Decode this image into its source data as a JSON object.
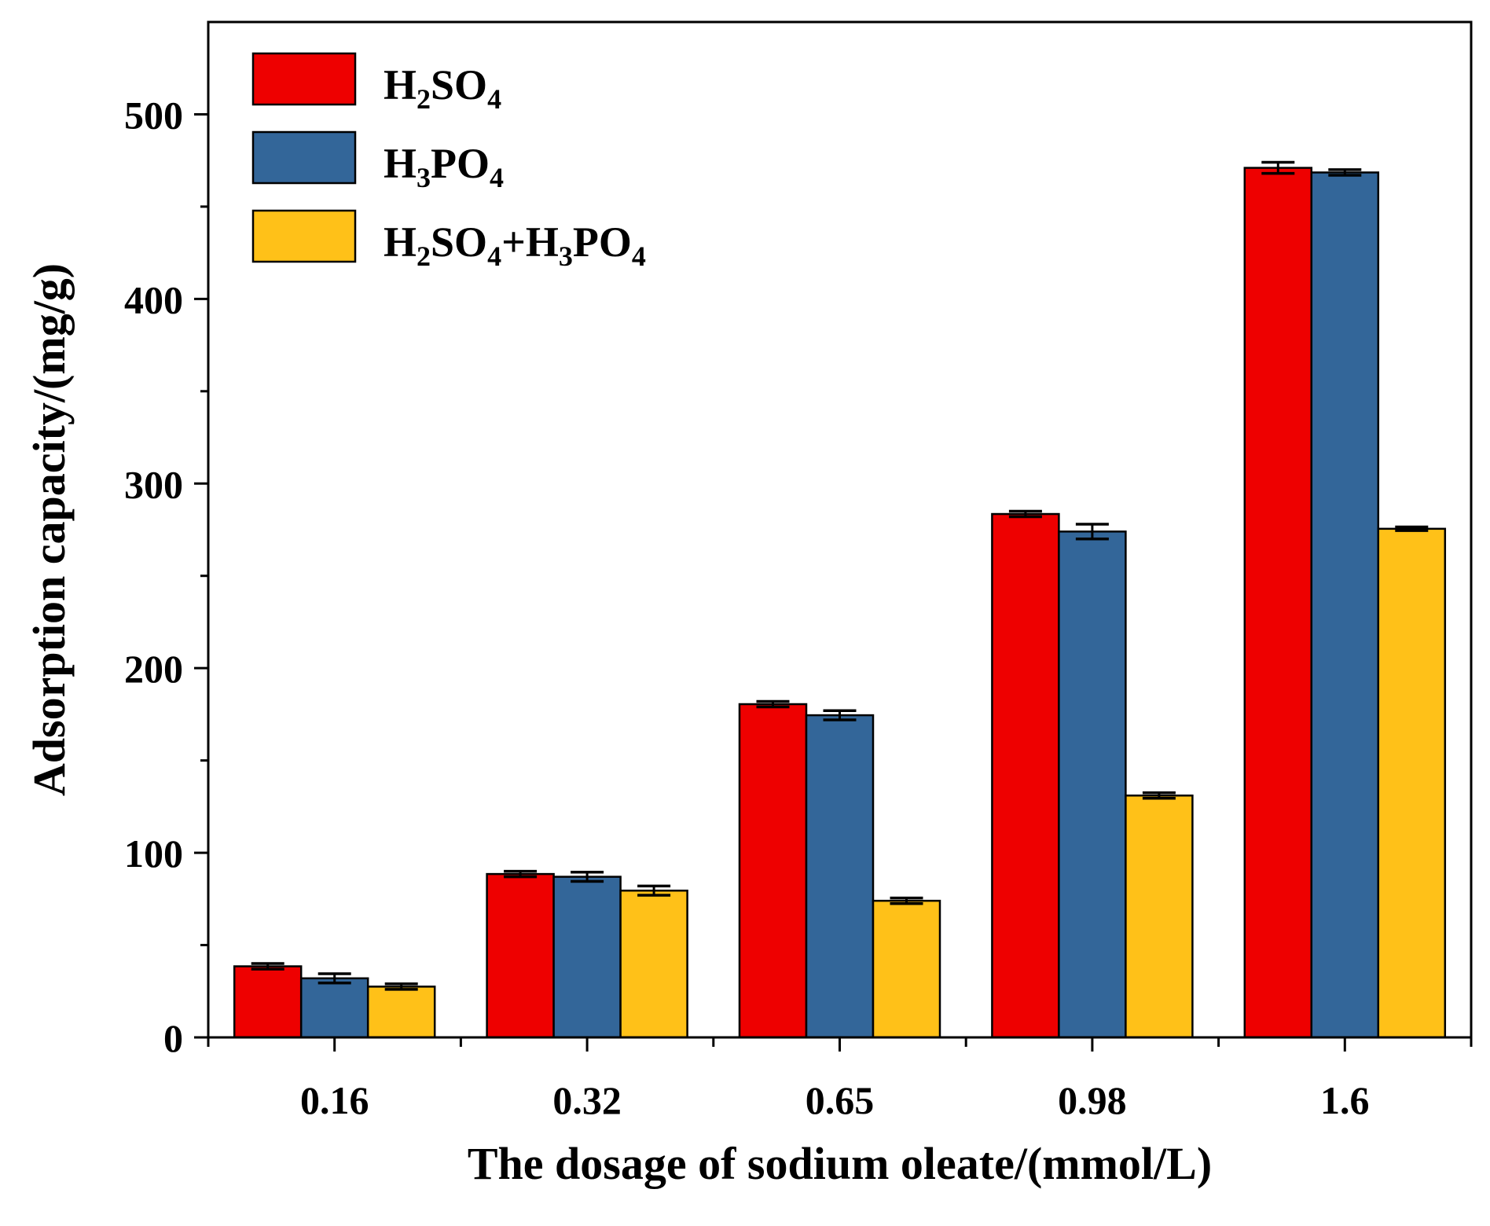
{
  "chart_data": {
    "type": "bar",
    "title": "",
    "xlabel": "The dosage of sodium oleate/(mmol/L)",
    "ylabel": "Adsorption capacity/(mg/g)",
    "ylim": [
      0,
      550
    ],
    "yticks": [
      0,
      100,
      200,
      300,
      400,
      500
    ],
    "ytick_labels": [
      "0",
      "100",
      "200",
      "300",
      "400",
      "500"
    ],
    "categories": [
      "0.16",
      "0.32",
      "0.65",
      "0.98",
      "1.6"
    ],
    "legend_position": "top-left",
    "series": [
      {
        "name": "H2SO4",
        "label_parts": [
          {
            "t": "H",
            "s": false
          },
          {
            "t": "2",
            "s": true
          },
          {
            "t": "SO",
            "s": false
          },
          {
            "t": "4",
            "s": true
          }
        ],
        "color": "#ee0000",
        "values": [
          38.5,
          88.5,
          180.5,
          283.5,
          471
        ],
        "errors": [
          1.5,
          1.5,
          1.5,
          1.5,
          3
        ]
      },
      {
        "name": "H3PO4",
        "label_parts": [
          {
            "t": "H",
            "s": false
          },
          {
            "t": "3",
            "s": true
          },
          {
            "t": "PO",
            "s": false
          },
          {
            "t": "4",
            "s": true
          }
        ],
        "color": "#336699",
        "values": [
          32,
          87,
          174.5,
          274,
          468.5
        ],
        "errors": [
          2.5,
          2.5,
          2.5,
          4,
          1.5
        ]
      },
      {
        "name": "H2SO4+H3PO4",
        "label_parts": [
          {
            "t": "H",
            "s": false
          },
          {
            "t": "2",
            "s": true
          },
          {
            "t": "SO",
            "s": false
          },
          {
            "t": "4",
            "s": true
          },
          {
            "t": "+H",
            "s": false
          },
          {
            "t": "3",
            "s": true
          },
          {
            "t": "PO",
            "s": false
          },
          {
            "t": "4",
            "s": true
          }
        ],
        "color": "#ffc118",
        "values": [
          27.5,
          79.5,
          74,
          131,
          275.5
        ],
        "errors": [
          1.5,
          2.5,
          1.5,
          1.5,
          1
        ]
      }
    ]
  }
}
